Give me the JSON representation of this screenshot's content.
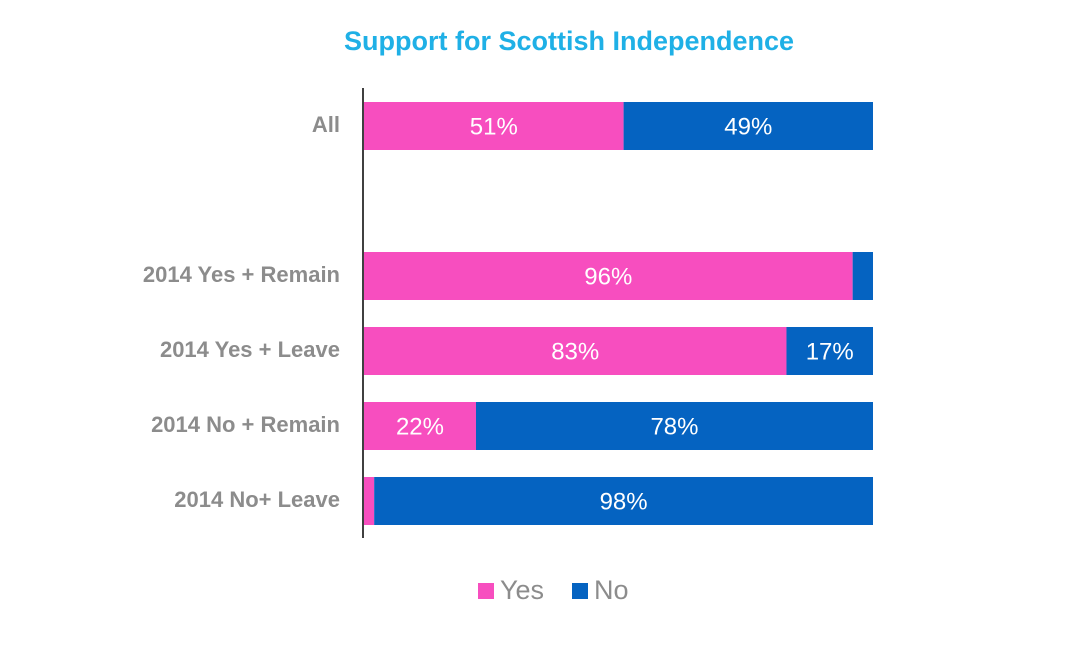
{
  "chart_data": {
    "type": "stacked-bar",
    "orientation": "horizontal",
    "title": "Support for Scottish Independence",
    "categories": [
      "All",
      null,
      "2014 Yes + Remain",
      "2014 Yes + Leave",
      "2014 No + Remain",
      "2014 No+ Leave"
    ],
    "xlim": [
      0,
      100
    ],
    "series": [
      {
        "name": "Yes",
        "color": "#f74ebf",
        "values": [
          51,
          null,
          96,
          83,
          22,
          2
        ],
        "value_labels": [
          "51%",
          null,
          "96%",
          "83%",
          "22%",
          null
        ]
      },
      {
        "name": "No",
        "color": "#0563c1",
        "values": [
          49,
          null,
          4,
          17,
          78,
          98
        ],
        "value_labels": [
          "49%",
          null,
          null,
          "17%",
          "78%",
          "98%"
        ]
      }
    ],
    "legend": "bottom"
  }
}
